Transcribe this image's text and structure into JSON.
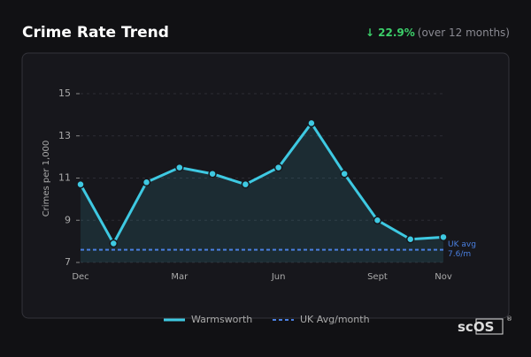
{
  "chart_data": {
    "type": "line",
    "title": "Crime Rate Trend",
    "y_label": "Crimes per 1,000",
    "categories": [
      "Dec",
      null,
      null,
      "Mar",
      null,
      null,
      "Jun",
      null,
      null,
      "Sept",
      null,
      "Nov"
    ],
    "series": [
      {
        "name": "Warmsworth",
        "color": "#3ec9e2",
        "values": [
          10.7,
          7.9,
          10.8,
          11.5,
          11.2,
          10.7,
          11.5,
          13.6,
          11.2,
          9.0,
          8.1,
          8.2
        ]
      }
    ],
    "reference": {
      "name": "UK Avg/month",
      "color": "#4a7fe0",
      "value": 7.6,
      "label_lines": [
        "UK avg",
        "7.6/m"
      ]
    },
    "ylim": [
      7,
      15
    ],
    "yticks": [
      7,
      9,
      11,
      13,
      15
    ],
    "grid": true
  },
  "header": {
    "change": "↓ 22.9%",
    "period": "(over 12 months)"
  },
  "brand": {
    "prefix": "sc",
    "boxed": "OS",
    "mark": "®"
  }
}
